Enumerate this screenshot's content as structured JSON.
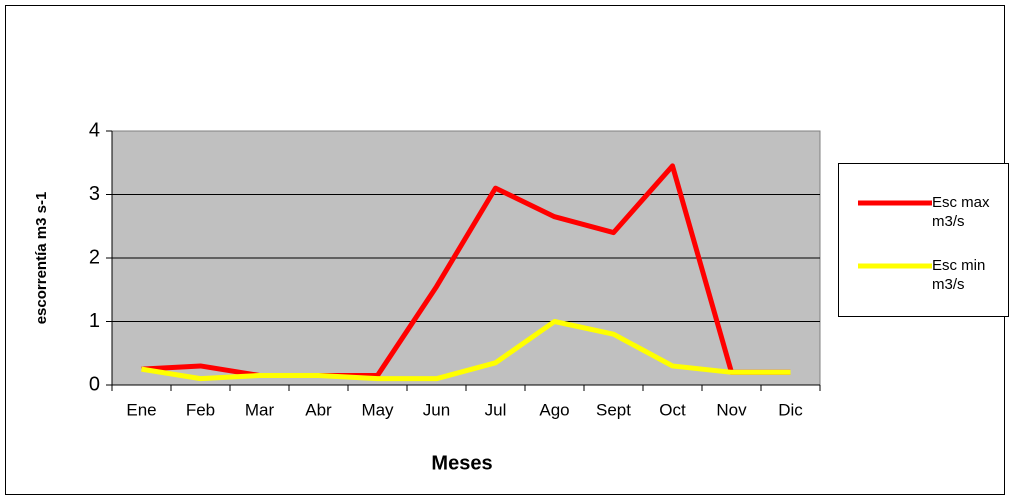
{
  "chart_data": {
    "type": "line",
    "x_label": "Meses",
    "y_label": "escorrentía m3 s-1",
    "categories": [
      "Ene",
      "Feb",
      "Mar",
      "Abr",
      "May",
      "Jun",
      "Jul",
      "Ago",
      "Sept",
      "Oct",
      "Nov",
      "Dic"
    ],
    "series": [
      {
        "name": "Esc max m3/s",
        "color": "#ff0000",
        "values": [
          0.25,
          0.3,
          0.15,
          0.15,
          0.15,
          1.55,
          3.1,
          2.65,
          2.4,
          3.45,
          0.2,
          0.2
        ]
      },
      {
        "name": "Esc min m3/s",
        "color": "#ffff00",
        "values": [
          0.25,
          0.1,
          0.15,
          0.15,
          0.1,
          0.1,
          0.35,
          1.0,
          0.8,
          0.3,
          0.2,
          0.2
        ]
      }
    ],
    "ylim": [
      0,
      4
    ],
    "yticks": [
      0,
      1,
      2,
      3,
      4
    ],
    "grid": true,
    "legend": "right"
  }
}
